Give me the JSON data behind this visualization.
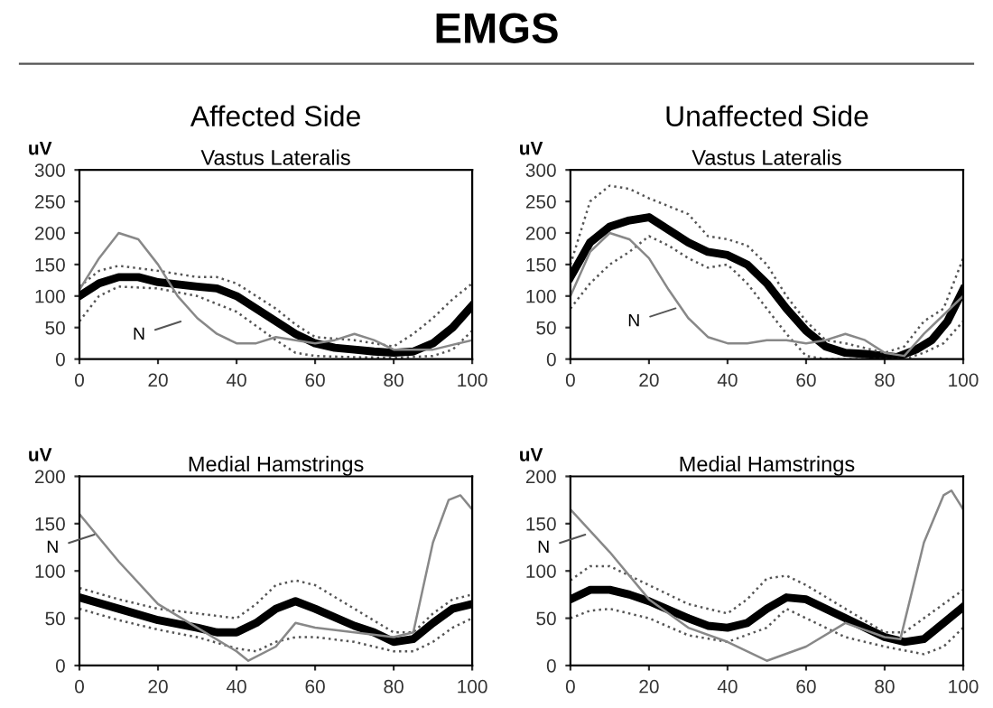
{
  "chart_data": [
    {
      "type": "line",
      "title": "Affected Side",
      "subtitle": "Vastus Lateralis",
      "ylabel": "uV",
      "annotations": [
        "EMGS",
        {
          "text": "N",
          "x": 27,
          "y": 62
        }
      ],
      "xlim": [
        0,
        100
      ],
      "xticks": [
        0,
        20,
        40,
        60,
        80,
        100
      ],
      "ylim": [
        0,
        300
      ],
      "yticks": [
        0,
        50,
        100,
        150,
        200,
        250,
        300
      ],
      "grid": false,
      "legend": false,
      "series": [
        {
          "color": "#000000",
          "line_style": "solid",
          "x": [
            0,
            5,
            10,
            15,
            20,
            30,
            35,
            40,
            45,
            50,
            55,
            60,
            65,
            70,
            75,
            80,
            85,
            90,
            95,
            100
          ],
          "values": [
            100,
            120,
            130,
            130,
            122,
            115,
            112,
            100,
            80,
            60,
            40,
            25,
            18,
            15,
            12,
            10,
            12,
            25,
            50,
            85
          ]
        },
        {
          "color": "#555555",
          "line_style": "dotted",
          "x": [
            0,
            5,
            10,
            20,
            30,
            35,
            40,
            50,
            55,
            60,
            70,
            80,
            85,
            90,
            95,
            100
          ],
          "values": [
            115,
            140,
            148,
            140,
            130,
            130,
            120,
            80,
            55,
            35,
            30,
            20,
            40,
            65,
            95,
            120
          ]
        },
        {
          "color": "#555555",
          "line_style": "dotted",
          "x": [
            0,
            5,
            10,
            20,
            30,
            40,
            50,
            55,
            60,
            70,
            80,
            90,
            95,
            100
          ],
          "values": [
            60,
            100,
            115,
            112,
            100,
            75,
            30,
            10,
            5,
            3,
            2,
            5,
            15,
            45
          ]
        },
        {
          "color": "#888888",
          "line_style": "solid",
          "x": [
            0,
            5,
            10,
            15,
            20,
            25,
            30,
            35,
            40,
            45,
            50,
            55,
            60,
            65,
            70,
            75,
            80,
            90,
            100
          ],
          "values": [
            110,
            160,
            200,
            190,
            150,
            100,
            65,
            40,
            25,
            25,
            35,
            30,
            25,
            30,
            40,
            30,
            15,
            15,
            30
          ]
        }
      ]
    },
    {
      "type": "line",
      "title": "Unaffected Side",
      "subtitle": "Vastus Lateralis",
      "ylabel": "uV",
      "annotations": [
        {
          "text": "N",
          "x": 28,
          "y": 83
        }
      ],
      "xlim": [
        0,
        100
      ],
      "xticks": [
        0,
        20,
        40,
        60,
        80,
        100
      ],
      "ylim": [
        0,
        300
      ],
      "yticks": [
        0,
        50,
        100,
        150,
        200,
        250,
        300
      ],
      "grid": false,
      "legend": false,
      "series": [
        {
          "color": "#000000",
          "line_style": "solid",
          "x": [
            0,
            5,
            10,
            15,
            20,
            25,
            30,
            35,
            40,
            45,
            50,
            55,
            60,
            65,
            70,
            75,
            80,
            83,
            88,
            92,
            96,
            100
          ],
          "values": [
            130,
            185,
            210,
            220,
            225,
            205,
            185,
            170,
            165,
            150,
            120,
            80,
            45,
            20,
            10,
            8,
            5,
            3,
            15,
            30,
            60,
            110
          ]
        },
        {
          "color": "#555555",
          "line_style": "dotted",
          "x": [
            0,
            5,
            10,
            15,
            20,
            30,
            35,
            40,
            45,
            50,
            55,
            60,
            65,
            70,
            80,
            85,
            90,
            95,
            100
          ],
          "values": [
            150,
            250,
            275,
            270,
            255,
            230,
            195,
            190,
            180,
            150,
            100,
            60,
            30,
            25,
            10,
            20,
            60,
            80,
            160
          ]
        },
        {
          "color": "#555555",
          "line_style": "dotted",
          "x": [
            0,
            5,
            10,
            15,
            20,
            25,
            30,
            35,
            40,
            45,
            50,
            55,
            60,
            65,
            70,
            80,
            85,
            90,
            95,
            100
          ],
          "values": [
            80,
            120,
            150,
            170,
            195,
            180,
            160,
            145,
            150,
            120,
            80,
            40,
            5,
            0,
            0,
            0,
            0,
            10,
            25,
            60
          ]
        },
        {
          "color": "#888888",
          "line_style": "solid",
          "x": [
            0,
            5,
            10,
            15,
            20,
            25,
            30,
            35,
            40,
            45,
            50,
            55,
            60,
            65,
            70,
            75,
            80,
            85,
            90,
            95,
            100
          ],
          "values": [
            100,
            170,
            200,
            190,
            160,
            110,
            65,
            35,
            25,
            25,
            30,
            30,
            25,
            30,
            40,
            30,
            10,
            5,
            40,
            70,
            100
          ]
        }
      ]
    },
    {
      "type": "line",
      "title": "Medial Hamstrings",
      "ylabel": "uV",
      "annotations": [
        {
          "text": "N",
          "x": 5,
          "y": 140
        }
      ],
      "xlim": [
        0,
        100
      ],
      "xticks": [
        0,
        20,
        40,
        60,
        80,
        100
      ],
      "ylim": [
        0,
        200
      ],
      "yticks": [
        0,
        50,
        100,
        150,
        200
      ],
      "grid": false,
      "legend": false,
      "series": [
        {
          "color": "#000000",
          "line_style": "solid",
          "x": [
            0,
            10,
            20,
            30,
            35,
            40,
            45,
            50,
            55,
            60,
            70,
            75,
            80,
            85,
            90,
            95,
            100
          ],
          "values": [
            72,
            60,
            48,
            40,
            35,
            35,
            45,
            60,
            68,
            60,
            42,
            35,
            25,
            28,
            45,
            60,
            65
          ]
        },
        {
          "color": "#555555",
          "line_style": "dotted",
          "x": [
            0,
            10,
            20,
            30,
            40,
            45,
            50,
            55,
            60,
            70,
            80,
            85,
            90,
            95,
            100
          ],
          "values": [
            82,
            70,
            60,
            55,
            50,
            65,
            85,
            90,
            85,
            60,
            35,
            35,
            55,
            70,
            75
          ]
        },
        {
          "color": "#555555",
          "line_style": "dotted",
          "x": [
            0,
            10,
            20,
            30,
            40,
            45,
            50,
            55,
            60,
            70,
            80,
            85,
            90,
            95,
            100
          ],
          "values": [
            60,
            48,
            38,
            30,
            18,
            15,
            25,
            30,
            30,
            25,
            15,
            15,
            25,
            40,
            50
          ]
        },
        {
          "color": "#888888",
          "line_style": "solid",
          "x": [
            0,
            10,
            20,
            30,
            40,
            43,
            50,
            55,
            60,
            70,
            80,
            85,
            90,
            94,
            97,
            100
          ],
          "values": [
            160,
            110,
            65,
            40,
            15,
            5,
            20,
            45,
            40,
            35,
            30,
            35,
            130,
            175,
            180,
            165
          ]
        }
      ]
    },
    {
      "type": "line",
      "title": "Medial Hamstrings",
      "ylabel": "uV",
      "annotations": [
        {
          "text": "N",
          "x": 5,
          "y": 140
        }
      ],
      "xlim": [
        0,
        100
      ],
      "xticks": [
        0,
        20,
        40,
        60,
        80,
        100
      ],
      "ylim": [
        0,
        200
      ],
      "yticks": [
        0,
        50,
        100,
        150,
        200
      ],
      "grid": false,
      "legend": false,
      "series": [
        {
          "color": "#000000",
          "line_style": "solid",
          "x": [
            0,
            5,
            10,
            15,
            20,
            30,
            35,
            40,
            45,
            50,
            55,
            60,
            70,
            80,
            85,
            90,
            95,
            100
          ],
          "values": [
            70,
            80,
            80,
            75,
            68,
            50,
            42,
            40,
            45,
            60,
            72,
            70,
            50,
            30,
            25,
            28,
            45,
            62
          ]
        },
        {
          "color": "#555555",
          "line_style": "dotted",
          "x": [
            0,
            5,
            10,
            20,
            30,
            40,
            45,
            50,
            55,
            60,
            70,
            80,
            85,
            90,
            95,
            100
          ],
          "values": [
            90,
            105,
            105,
            85,
            65,
            55,
            70,
            92,
            95,
            85,
            60,
            35,
            35,
            50,
            65,
            80
          ]
        },
        {
          "color": "#555555",
          "line_style": "dotted",
          "x": [
            0,
            5,
            10,
            20,
            30,
            40,
            50,
            55,
            60,
            70,
            80,
            90,
            95,
            100
          ],
          "values": [
            50,
            58,
            60,
            50,
            32,
            25,
            40,
            60,
            50,
            30,
            20,
            12,
            20,
            40
          ]
        },
        {
          "color": "#888888",
          "line_style": "solid",
          "x": [
            0,
            10,
            20,
            30,
            40,
            50,
            60,
            70,
            80,
            84,
            90,
            95,
            97,
            100
          ],
          "values": [
            165,
            120,
            70,
            40,
            25,
            5,
            20,
            45,
            30,
            28,
            130,
            180,
            185,
            165
          ]
        }
      ]
    }
  ]
}
